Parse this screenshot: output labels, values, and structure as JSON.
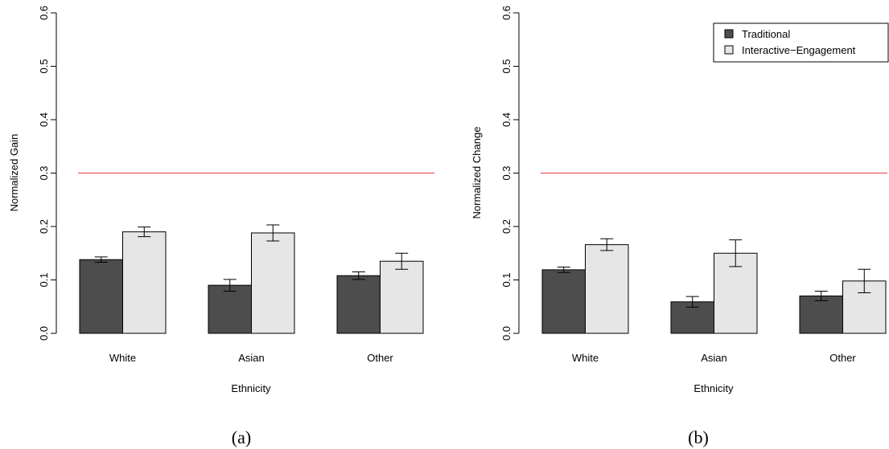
{
  "chart_data": [
    {
      "type": "bar",
      "panel_label": "(a)",
      "xlabel": "Ethnicity",
      "ylabel": "Normalized Gain",
      "categories": [
        "White",
        "Asian",
        "Other"
      ],
      "ylim": [
        0,
        0.6
      ],
      "yticks": [
        "0.0",
        "0.1",
        "0.2",
        "0.3",
        "0.4",
        "0.5",
        "0.6"
      ],
      "reference_line": {
        "y": 0.3,
        "color": "#e8585f"
      },
      "legend": null,
      "series": [
        {
          "name": "Traditional",
          "color": "#4d4d4d",
          "values": [
            0.138,
            0.09,
            0.108
          ],
          "err": [
            0.005,
            0.011,
            0.007
          ]
        },
        {
          "name": "Interactive−Engagement",
          "color": "#e6e6e6",
          "values": [
            0.19,
            0.188,
            0.135
          ],
          "err": [
            0.009,
            0.015,
            0.015
          ]
        }
      ]
    },
    {
      "type": "bar",
      "panel_label": "(b)",
      "xlabel": "Ethnicity",
      "ylabel": "Normalized Change",
      "categories": [
        "White",
        "Asian",
        "Other"
      ],
      "ylim": [
        0,
        0.6
      ],
      "yticks": [
        "0.0",
        "0.1",
        "0.2",
        "0.3",
        "0.4",
        "0.5",
        "0.6"
      ],
      "reference_line": {
        "y": 0.3,
        "color": "#e8585f"
      },
      "legend": "top-right",
      "series": [
        {
          "name": "Traditional",
          "color": "#4d4d4d",
          "values": [
            0.119,
            0.059,
            0.07
          ],
          "err": [
            0.005,
            0.01,
            0.009
          ]
        },
        {
          "name": "Interactive−Engagement",
          "color": "#e6e6e6",
          "values": [
            0.166,
            0.15,
            0.098
          ],
          "err": [
            0.011,
            0.025,
            0.022
          ]
        }
      ]
    }
  ]
}
